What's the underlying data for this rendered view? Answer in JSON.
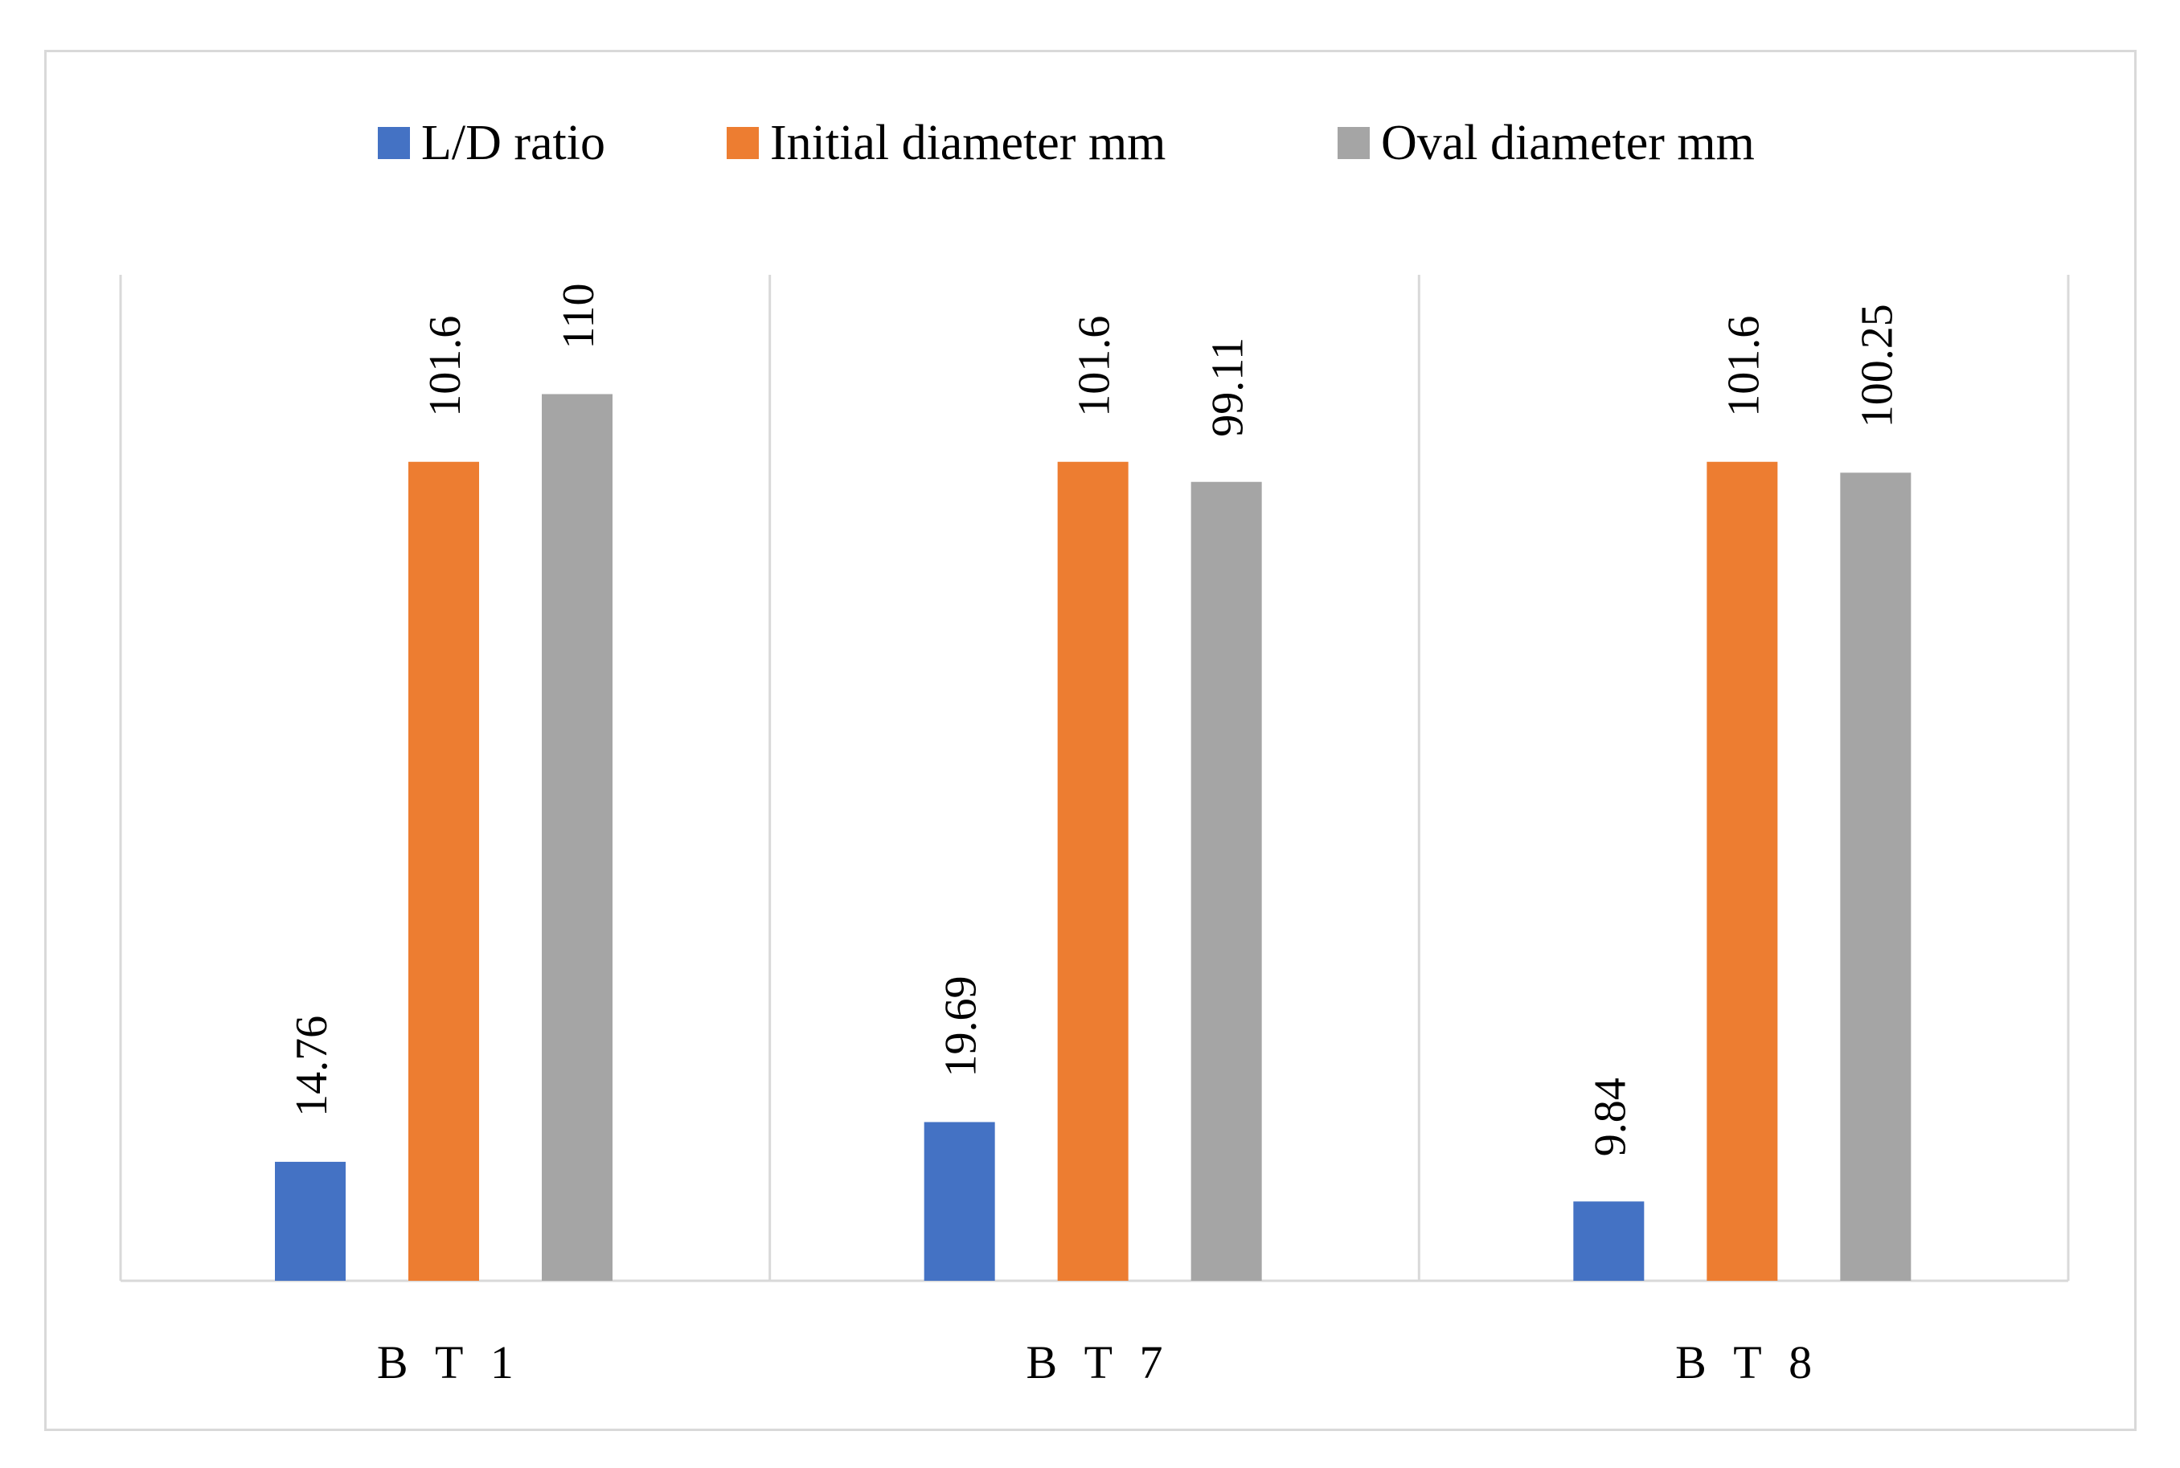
{
  "chart_data": {
    "type": "bar",
    "title": "",
    "xlabel": "",
    "ylabel": "",
    "ylim": [
      0,
      125
    ],
    "grid": false,
    "legend_position": "top-center",
    "categories": [
      "B T 1",
      "B T 7",
      "B T 8"
    ],
    "series": [
      {
        "name": "L/D ratio",
        "color": "#4472C4",
        "values": [
          14.76,
          19.69,
          9.84
        ],
        "labels": [
          "14.76",
          "19.69",
          "9.84"
        ]
      },
      {
        "name": "Initial diameter mm",
        "color": "#ED7D31",
        "values": [
          101.6,
          101.6,
          101.6
        ],
        "labels": [
          "101.6",
          "101.6",
          "101.6"
        ]
      },
      {
        "name": "Oval diameter mm",
        "color": "#A5A5A5",
        "values": [
          110,
          99.11,
          100.25
        ],
        "labels": [
          "110",
          "99.11",
          "100.25"
        ]
      }
    ],
    "axis_color": "#d9d9d9",
    "data_label_orientation": "vertical"
  }
}
